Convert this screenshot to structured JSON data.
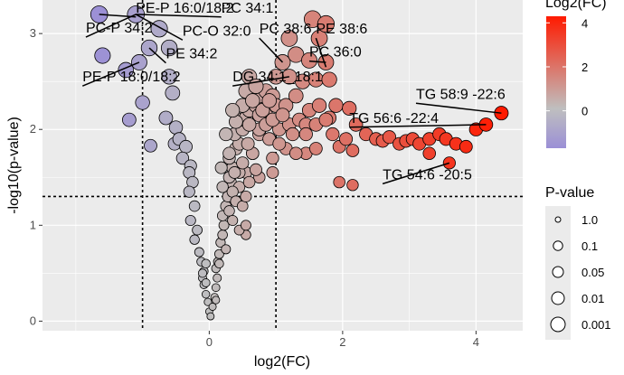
{
  "chart_data": {
    "type": "scatter",
    "xlabel": "log2(FC)",
    "ylabel": "-log10(p-value)",
    "x_ticks": [
      0,
      2,
      4
    ],
    "y_ticks": [
      0,
      1,
      2,
      3
    ],
    "xlim": [
      -2.5,
      4.7
    ],
    "ylim": [
      -0.1,
      3.35
    ],
    "thresholds": {
      "x": [
        -1,
        1
      ],
      "y": 1.3
    },
    "color_legend": {
      "title": "Log2(FC)",
      "ticks": [
        "0",
        "2",
        "4"
      ],
      "low": "#9b8fd6",
      "mid": "#bfbfbf",
      "high": "#ff1a00"
    },
    "size_legend": {
      "title": "P-value",
      "labels": [
        "1.0",
        "0.1",
        "0.05",
        "0.01",
        "0.001"
      ]
    },
    "annotations": [
      {
        "label": "PE-P 16:0/18:2",
        "x": -1.65,
        "y": 3.2,
        "tx": -1.1,
        "ty": 3.22
      },
      {
        "label": "PC 34:1",
        "x": -1.1,
        "y": 3.2,
        "tx": 0.18,
        "ty": 3.22
      },
      {
        "label": "PC-P 34:2",
        "x": -1.1,
        "y": 3.2,
        "tx": -1.85,
        "ty": 3.01
      },
      {
        "label": "PC-O 32:0",
        "x": -1.1,
        "y": 3.2,
        "tx": -0.4,
        "ty": 2.98
      },
      {
        "label": "PC 38:6",
        "x": 1.1,
        "y": 2.7,
        "tx": 0.75,
        "ty": 3.0
      },
      {
        "label": "PE 38:6",
        "x": 1.75,
        "y": 2.65,
        "tx": 1.6,
        "ty": 3.0
      },
      {
        "label": "PE 34:2",
        "x": -0.9,
        "y": 2.85,
        "tx": -0.65,
        "ty": 2.74
      },
      {
        "label": "PC 36:0",
        "x": 1.75,
        "y": 2.7,
        "tx": 1.5,
        "ty": 2.76
      },
      {
        "label": "PE-P 18:0/18:2",
        "x": -1.05,
        "y": 2.7,
        "tx": -1.9,
        "ty": 2.5
      },
      {
        "label": "DG 34:1_18:1",
        "x": 1.2,
        "y": 2.55,
        "tx": 0.35,
        "ty": 2.5
      },
      {
        "label": "TG 58:9 -22:6",
        "x": 4.38,
        "y": 2.17,
        "tx": 3.1,
        "ty": 2.32
      },
      {
        "label": "TG 56:6 -22:4",
        "x": 4.15,
        "y": 2.05,
        "tx": 2.1,
        "ty": 2.07
      },
      {
        "label": "TG 54:6 -20:5",
        "x": 3.6,
        "y": 1.65,
        "tx": 2.6,
        "ty": 1.48
      }
    ],
    "points": [
      [
        -1.65,
        3.2
      ],
      [
        -1.1,
        3.2
      ],
      [
        -0.9,
        2.85
      ],
      [
        -0.75,
        3.05
      ],
      [
        -0.6,
        2.85
      ],
      [
        -1.6,
        2.77
      ],
      [
        -1.25,
        2.62
      ],
      [
        -1.05,
        2.7
      ],
      [
        -0.6,
        2.55
      ],
      [
        -0.55,
        2.38
      ],
      [
        -1.0,
        2.28
      ],
      [
        -1.2,
        2.1
      ],
      [
        -0.65,
        2.12
      ],
      [
        -0.88,
        1.83
      ],
      [
        -0.52,
        1.85
      ],
      [
        -0.5,
        2.02
      ],
      [
        -0.45,
        1.9
      ],
      [
        -0.35,
        1.82
      ],
      [
        -0.4,
        1.7
      ],
      [
        -0.28,
        1.62
      ],
      [
        -0.3,
        1.55
      ],
      [
        -0.25,
        1.45
      ],
      [
        -0.3,
        1.35
      ],
      [
        -0.22,
        1.2
      ],
      [
        -0.28,
        1.05
      ],
      [
        -0.18,
        0.95
      ],
      [
        -0.22,
        0.85
      ],
      [
        -0.15,
        0.72
      ],
      [
        -0.12,
        0.62
      ],
      [
        -0.08,
        0.52
      ],
      [
        -0.1,
        0.45
      ],
      [
        -0.08,
        0.38
      ],
      [
        -0.05,
        0.28
      ],
      [
        -0.02,
        0.2
      ],
      [
        0.0,
        0.1
      ],
      [
        0.02,
        0.05
      ],
      [
        0.05,
        0.15
      ],
      [
        0.08,
        0.25
      ],
      [
        0.1,
        0.35
      ],
      [
        0.12,
        0.45
      ],
      [
        0.1,
        0.55
      ],
      [
        0.13,
        0.62
      ],
      [
        0.15,
        0.7
      ],
      [
        0.17,
        0.82
      ],
      [
        0.2,
        0.9
      ],
      [
        0.22,
        1.0
      ],
      [
        0.2,
        1.1
      ],
      [
        0.25,
        1.2
      ],
      [
        0.28,
        1.3
      ],
      [
        0.32,
        1.45
      ],
      [
        0.35,
        1.6
      ],
      [
        0.3,
        1.7
      ],
      [
        0.4,
        1.8
      ],
      [
        0.45,
        1.85
      ],
      [
        0.38,
        1.95
      ],
      [
        0.5,
        2.0
      ],
      [
        0.45,
        2.1
      ],
      [
        0.55,
        2.12
      ],
      [
        0.6,
        2.2
      ],
      [
        0.7,
        2.25
      ],
      [
        0.75,
        2.35
      ],
      [
        0.85,
        2.4
      ],
      [
        0.95,
        2.35
      ],
      [
        0.65,
        1.75
      ],
      [
        0.75,
        1.95
      ],
      [
        0.85,
        2.05
      ],
      [
        0.9,
        1.9
      ],
      [
        1.05,
        2.0
      ],
      [
        1.2,
        2.05
      ],
      [
        1.35,
        2.1
      ],
      [
        1.5,
        2.2
      ],
      [
        1.65,
        2.25
      ],
      [
        1.8,
        2.12
      ],
      [
        1.9,
        2.25
      ],
      [
        2.1,
        2.22
      ],
      [
        2.2,
        2.05
      ],
      [
        2.35,
        1.95
      ],
      [
        2.5,
        1.9
      ],
      [
        2.6,
        1.88
      ],
      [
        2.7,
        1.92
      ],
      [
        2.85,
        1.85
      ],
      [
        2.95,
        1.88
      ],
      [
        3.05,
        1.9
      ],
      [
        3.15,
        1.85
      ],
      [
        3.3,
        1.9
      ],
      [
        3.45,
        1.95
      ],
      [
        3.55,
        1.9
      ],
      [
        3.7,
        1.85
      ],
      [
        3.85,
        1.82
      ],
      [
        4.0,
        2.0
      ],
      [
        4.15,
        2.05
      ],
      [
        4.38,
        2.17
      ],
      [
        3.6,
        1.65
      ],
      [
        3.3,
        1.75
      ],
      [
        1.1,
        2.7
      ],
      [
        1.3,
        2.78
      ],
      [
        1.5,
        2.72
      ],
      [
        1.75,
        2.7
      ],
      [
        1.2,
        2.95
      ],
      [
        1.65,
        2.95
      ],
      [
        1.55,
        3.15
      ],
      [
        1.75,
        3.1
      ],
      [
        1.4,
        2.5
      ],
      [
        1.2,
        2.55
      ],
      [
        1.0,
        2.55
      ],
      [
        1.6,
        2.52
      ],
      [
        1.8,
        2.52
      ],
      [
        1.45,
        1.75
      ],
      [
        1.6,
        1.8
      ],
      [
        1.15,
        1.8
      ],
      [
        1.3,
        1.75
      ],
      [
        1.95,
        1.82
      ],
      [
        2.05,
        1.9
      ],
      [
        2.15,
        1.78
      ],
      [
        1.95,
        1.45
      ],
      [
        2.15,
        1.42
      ],
      [
        0.95,
        1.55
      ],
      [
        0.75,
        1.5
      ],
      [
        0.55,
        1.55
      ],
      [
        0.45,
        1.4
      ],
      [
        0.35,
        1.35
      ],
      [
        0.4,
        1.25
      ],
      [
        0.5,
        1.2
      ],
      [
        0.6,
        1.45
      ],
      [
        0.55,
        1.3
      ],
      [
        0.65,
        1.75
      ],
      [
        0.75,
        2.0
      ],
      [
        0.85,
        2.15
      ],
      [
        0.6,
        2.05
      ],
      [
        0.4,
        2.08
      ],
      [
        0.75,
        2.15
      ],
      [
        1.0,
        2.25
      ],
      [
        0.5,
        2.25
      ],
      [
        0.35,
        2.2
      ],
      [
        0.25,
        1.95
      ],
      [
        0.18,
        1.6
      ],
      [
        0.2,
        1.4
      ],
      [
        0.45,
        1.55
      ],
      [
        0.5,
        1.65
      ],
      [
        0.3,
        1.5
      ],
      [
        0.55,
        0.9
      ],
      [
        0.45,
        0.95
      ],
      [
        0.25,
        0.75
      ],
      [
        0.15,
        0.6
      ],
      [
        -0.05,
        0.6
      ],
      [
        -0.1,
        0.5
      ],
      [
        -0.05,
        0.4
      ],
      [
        0.1,
        0.22
      ],
      [
        0.55,
        1.0
      ],
      [
        0.3,
        1.15
      ],
      [
        0.35,
        1.05
      ],
      [
        0.38,
        1.55
      ],
      [
        0.58,
        1.85
      ],
      [
        0.7,
        1.58
      ],
      [
        0.3,
        1.75
      ],
      [
        0.55,
        2.4
      ],
      [
        0.65,
        2.3
      ],
      [
        0.85,
        2.05
      ],
      [
        0.95,
        2.1
      ],
      [
        0.6,
        2.55
      ],
      [
        0.7,
        2.45
      ],
      [
        0.8,
        2.2
      ],
      [
        1.15,
        2.25
      ],
      [
        1.3,
        2.35
      ],
      [
        1.45,
        2.05
      ],
      [
        1.6,
        2.05
      ],
      [
        1.75,
        2.1
      ],
      [
        1.85,
        1.95
      ],
      [
        1.25,
        1.95
      ],
      [
        1.45,
        1.95
      ],
      [
        1.1,
        2.15
      ],
      [
        0.9,
        2.3
      ],
      [
        0.95,
        1.7
      ],
      [
        1.05,
        1.85
      ]
    ]
  }
}
